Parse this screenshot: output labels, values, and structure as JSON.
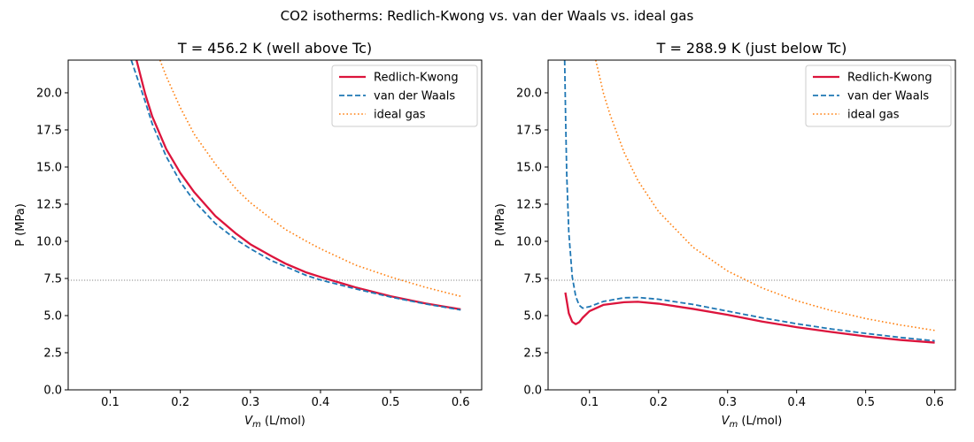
{
  "figure": {
    "title": "CO2 isotherms: Redlich-Kwong vs. van der Waals vs. ideal gas"
  },
  "chart_data": [
    {
      "type": "line",
      "title": "T = 456.2 K (well above Tc)",
      "xlabel": "V_m (L/mol)",
      "ylabel": "P (MPa)",
      "xlim": [
        0.04,
        0.63
      ],
      "ylim": [
        0,
        22.2
      ],
      "xticks": [
        0.1,
        0.2,
        0.3,
        0.4,
        0.5,
        0.6
      ],
      "yticks": [
        0.0,
        2.5,
        5.0,
        7.5,
        10.0,
        12.5,
        15.0,
        17.5,
        20.0
      ],
      "xtick_labels": [
        "0.1",
        "0.2",
        "0.3",
        "0.4",
        "0.5",
        "0.6"
      ],
      "ytick_labels": [
        "0.0",
        "2.5",
        "5.0",
        "7.5",
        "10.0",
        "12.5",
        "15.0",
        "17.5",
        "20.0"
      ],
      "hline": 7.38,
      "grid": false,
      "legend_position": "top-right",
      "series": [
        {
          "name": "Redlich-Kwong",
          "style": "solid",
          "color": "#dc143c",
          "x": [
            0.1375,
            0.15,
            0.16,
            0.18,
            0.2,
            0.22,
            0.25,
            0.28,
            0.3,
            0.33,
            0.35,
            0.38,
            0.4,
            0.45,
            0.5,
            0.55,
            0.6
          ],
          "y": [
            22.2,
            19.9,
            18.4,
            16.2,
            14.6,
            13.3,
            11.7,
            10.5,
            9.8,
            9.0,
            8.5,
            7.9,
            7.6,
            6.9,
            6.3,
            5.82,
            5.42
          ]
        },
        {
          "name": "van der Waals",
          "style": "dashed",
          "color": "#1f77b4",
          "x": [
            0.13,
            0.15,
            0.16,
            0.18,
            0.2,
            0.22,
            0.25,
            0.28,
            0.3,
            0.33,
            0.35,
            0.38,
            0.4,
            0.45,
            0.5,
            0.55,
            0.6
          ],
          "y": [
            22.2,
            19.4,
            17.9,
            15.7,
            14.0,
            12.7,
            11.2,
            10.1,
            9.5,
            8.7,
            8.3,
            7.7,
            7.4,
            6.8,
            6.25,
            5.78,
            5.38
          ]
        },
        {
          "name": "ideal gas",
          "style": "dotted",
          "color": "#ff7f0e",
          "x": [
            0.171,
            0.18,
            0.2,
            0.22,
            0.25,
            0.28,
            0.3,
            0.33,
            0.35,
            0.38,
            0.4,
            0.45,
            0.5,
            0.55,
            0.6
          ],
          "y": [
            22.2,
            21.1,
            19.0,
            17.2,
            15.2,
            13.5,
            12.6,
            11.5,
            10.8,
            10.0,
            9.5,
            8.4,
            7.6,
            6.9,
            6.3
          ]
        }
      ]
    },
    {
      "type": "line",
      "title": "T = 288.9 K (just below Tc)",
      "xlabel": "V_m (L/mol)",
      "ylabel": "P (MPa)",
      "xlim": [
        0.04,
        0.63
      ],
      "ylim": [
        0,
        22.2
      ],
      "xticks": [
        0.1,
        0.2,
        0.3,
        0.4,
        0.5,
        0.6
      ],
      "yticks": [
        0.0,
        2.5,
        5.0,
        7.5,
        10.0,
        12.5,
        15.0,
        17.5,
        20.0
      ],
      "xtick_labels": [
        "0.1",
        "0.2",
        "0.3",
        "0.4",
        "0.5",
        "0.6"
      ],
      "ytick_labels": [
        "0.0",
        "2.5",
        "5.0",
        "7.5",
        "10.0",
        "12.5",
        "15.0",
        "17.5",
        "20.0"
      ],
      "hline": 7.38,
      "grid": false,
      "legend_position": "top-right",
      "series": [
        {
          "name": "Redlich-Kwong",
          "style": "solid",
          "color": "#dc143c",
          "x": [
            0.065,
            0.07,
            0.075,
            0.08,
            0.085,
            0.09,
            0.1,
            0.12,
            0.15,
            0.17,
            0.2,
            0.25,
            0.3,
            0.35,
            0.4,
            0.45,
            0.5,
            0.55,
            0.6
          ],
          "y": [
            6.55,
            5.15,
            4.58,
            4.42,
            4.55,
            4.85,
            5.3,
            5.72,
            5.9,
            5.93,
            5.8,
            5.45,
            5.05,
            4.6,
            4.22,
            3.9,
            3.6,
            3.36,
            3.18
          ]
        },
        {
          "name": "van der Waals",
          "style": "dashed",
          "color": "#1f77b4",
          "x": [
            0.064,
            0.0655,
            0.067,
            0.07,
            0.075,
            0.08,
            0.085,
            0.09,
            0.1,
            0.12,
            0.15,
            0.17,
            0.2,
            0.25,
            0.3,
            0.35,
            0.4,
            0.45,
            0.5,
            0.55,
            0.6
          ],
          "y": [
            22.2,
            18.0,
            14.5,
            10.6,
            7.6,
            6.3,
            5.7,
            5.5,
            5.6,
            5.95,
            6.2,
            6.22,
            6.1,
            5.75,
            5.3,
            4.85,
            4.45,
            4.1,
            3.8,
            3.53,
            3.3
          ]
        },
        {
          "name": "ideal gas",
          "style": "dotted",
          "color": "#ff7f0e",
          "x": [
            0.109,
            0.12,
            0.13,
            0.15,
            0.17,
            0.2,
            0.25,
            0.3,
            0.35,
            0.4,
            0.45,
            0.5,
            0.55,
            0.6
          ],
          "y": [
            22.2,
            20.0,
            18.5,
            16.0,
            14.1,
            12.0,
            9.6,
            8.0,
            6.86,
            6.0,
            5.34,
            4.8,
            4.37,
            4.0
          ]
        }
      ]
    }
  ]
}
